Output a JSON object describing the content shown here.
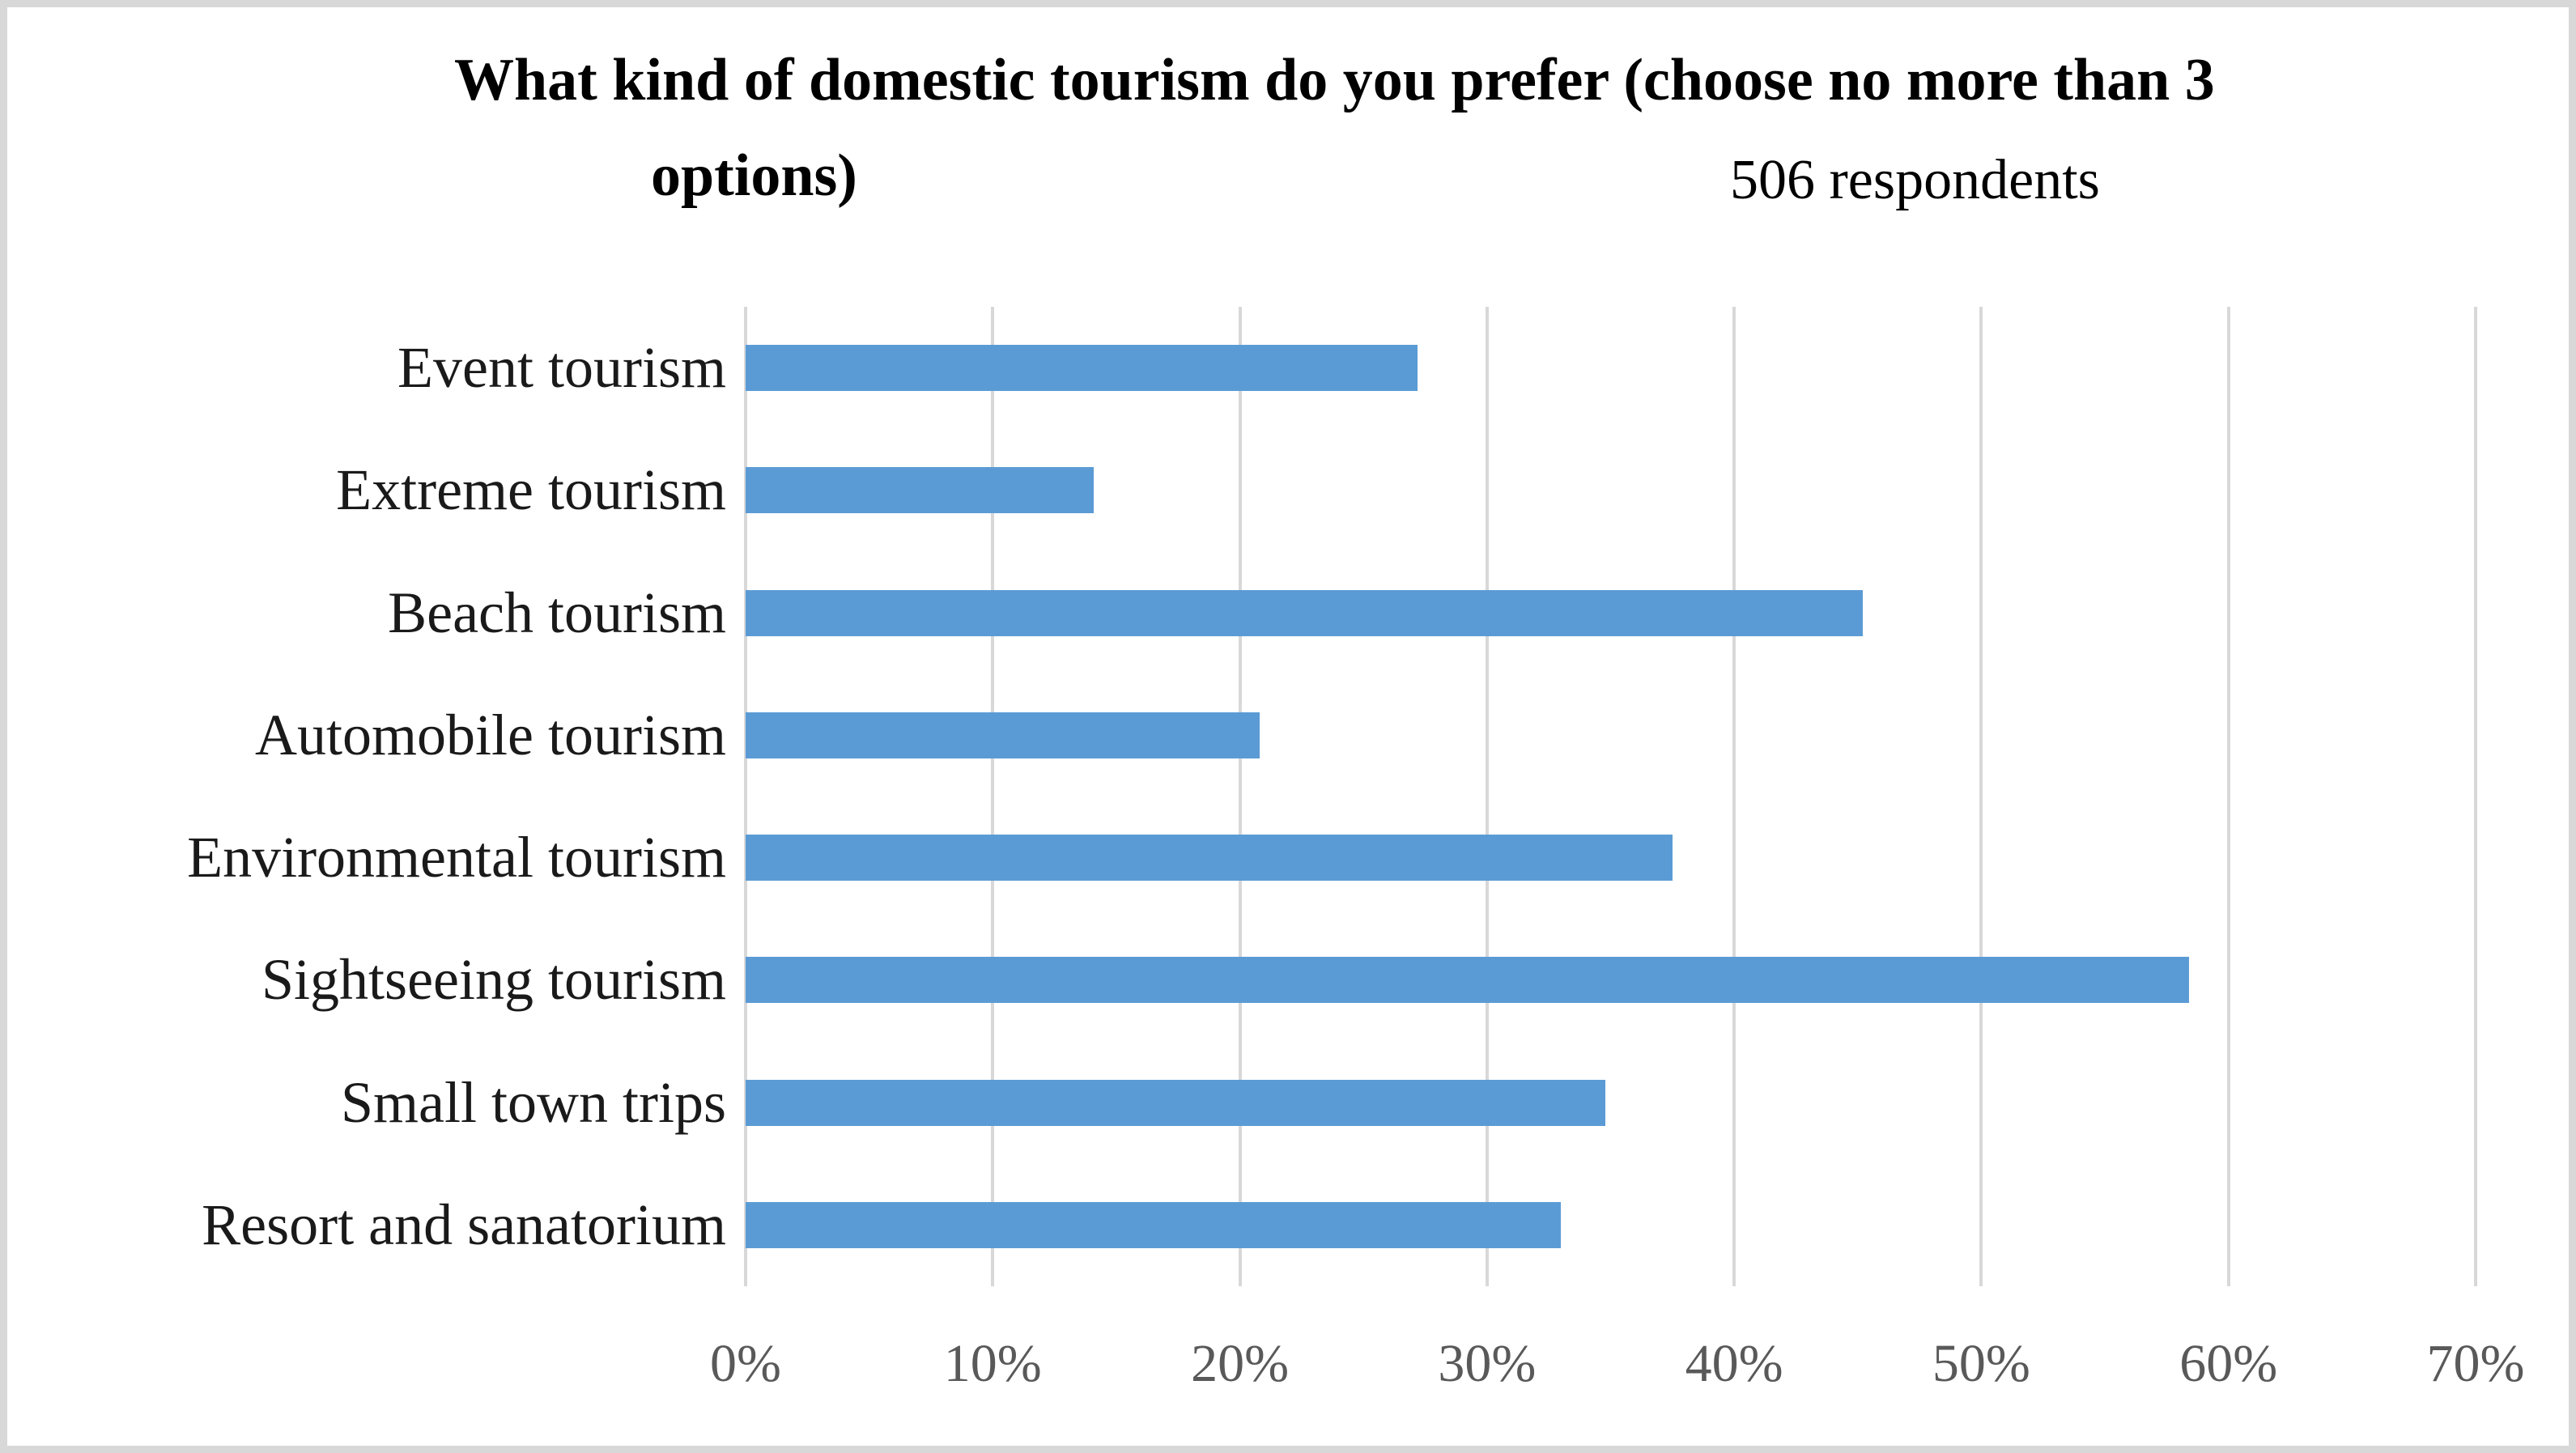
{
  "title": {
    "line1": "What kind of domestic tourism do you prefer (choose no more than 3",
    "line2_left": "options)",
    "subtitle": "506 respondents"
  },
  "chart_data": {
    "type": "bar",
    "orientation": "horizontal",
    "title": "What kind of domestic tourism do you prefer (choose no more than 3 options)",
    "subtitle": "506 respondents",
    "respondents_count": 506,
    "categories": [
      "Event tourism",
      "Extreme tourism",
      "Beach tourism",
      "Automobile tourism",
      "Environmental tourism",
      "Sightseeing tourism",
      "Small town trips",
      "Resort and sanatorium"
    ],
    "values": [
      27.2,
      14.1,
      45.2,
      20.8,
      37.5,
      58.4,
      34.8,
      33.0
    ],
    "unit": "%",
    "xlabel": "",
    "ylabel": "",
    "xlim": [
      0,
      70
    ],
    "x_tick_step": 10,
    "x_ticks": [
      "0%",
      "10%",
      "20%",
      "30%",
      "40%",
      "50%",
      "60%",
      "70%"
    ],
    "grid": "vertical-gridlines-on",
    "legend": "none",
    "colors": {
      "bar_fill": "#5B9BD5",
      "gridline": "#D8D8D8",
      "frame_border": "#D8D8D8",
      "tick_label": "#595959",
      "category_label": "#1A1A1A",
      "title_text": "#000000",
      "background": "#FFFFFF"
    }
  }
}
